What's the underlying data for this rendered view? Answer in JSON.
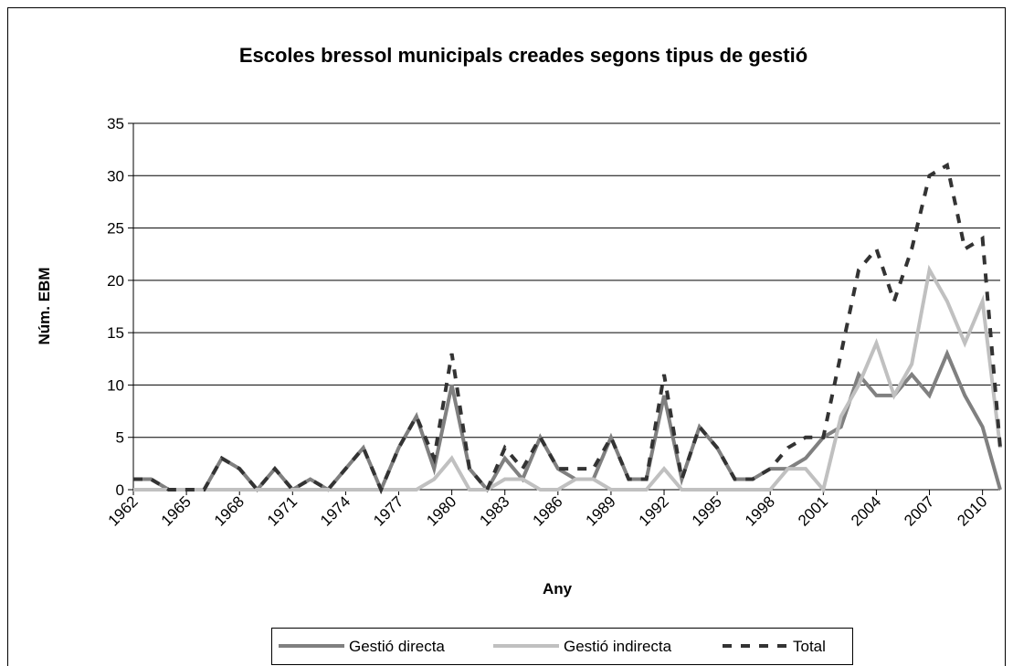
{
  "chart_data": {
    "type": "line",
    "title": "Escoles bressol municipals creades segons tipus de gestió",
    "x_label": "Any",
    "y_label": "Núm. EBM",
    "x": [
      1962,
      1963,
      1964,
      1965,
      1966,
      1967,
      1968,
      1969,
      1970,
      1971,
      1972,
      1973,
      1974,
      1975,
      1976,
      1977,
      1978,
      1979,
      1980,
      1981,
      1982,
      1983,
      1984,
      1985,
      1986,
      1987,
      1988,
      1989,
      1990,
      1991,
      1992,
      1993,
      1994,
      1995,
      1996,
      1997,
      1998,
      1999,
      2000,
      2001,
      2002,
      2003,
      2004,
      2005,
      2006,
      2007,
      2008,
      2009,
      2010,
      2011
    ],
    "series": [
      {
        "name": "Gestió directa",
        "color": "#808080",
        "dash": false,
        "values": [
          1,
          1,
          0,
          0,
          0,
          3,
          2,
          0,
          2,
          0,
          1,
          0,
          2,
          4,
          0,
          4,
          7,
          2,
          10,
          2,
          0,
          3,
          1,
          5,
          2,
          1,
          1,
          5,
          1,
          1,
          9,
          1,
          6,
          4,
          1,
          1,
          2,
          2,
          3,
          5,
          6,
          11,
          9,
          9,
          11,
          9,
          13,
          9,
          6,
          0
        ]
      },
      {
        "name": "Gestió indirecta",
        "color": "#c0c0c0",
        "dash": false,
        "values": [
          0,
          0,
          0,
          0,
          0,
          0,
          0,
          0,
          0,
          0,
          0,
          0,
          0,
          0,
          0,
          0,
          0,
          1,
          3,
          0,
          0,
          1,
          1,
          0,
          0,
          1,
          1,
          0,
          0,
          0,
          2,
          0,
          0,
          0,
          0,
          0,
          0,
          2,
          2,
          0,
          7,
          10,
          14,
          9,
          12,
          21,
          18,
          14,
          18,
          4
        ]
      },
      {
        "name": "Total",
        "color": "#333333",
        "dash": true,
        "values": [
          1,
          1,
          0,
          0,
          0,
          3,
          2,
          0,
          2,
          0,
          1,
          0,
          2,
          4,
          0,
          4,
          7,
          3,
          13,
          2,
          0,
          4,
          2,
          5,
          2,
          2,
          2,
          5,
          1,
          1,
          11,
          1,
          6,
          4,
          1,
          1,
          2,
          4,
          5,
          5,
          13,
          21,
          23,
          18,
          23,
          30,
          31,
          23,
          24,
          4
        ]
      }
    ],
    "xlim": [
      1962,
      2011
    ],
    "xticks": [
      1962,
      1965,
      1968,
      1971,
      1974,
      1977,
      1980,
      1983,
      1986,
      1989,
      1992,
      1995,
      1998,
      2001,
      2004,
      2007,
      2010
    ],
    "ylim": [
      0,
      35
    ],
    "yticks": [
      0,
      5,
      10,
      15,
      20,
      25,
      30,
      35
    ],
    "grid": true,
    "legend": "bottom"
  }
}
